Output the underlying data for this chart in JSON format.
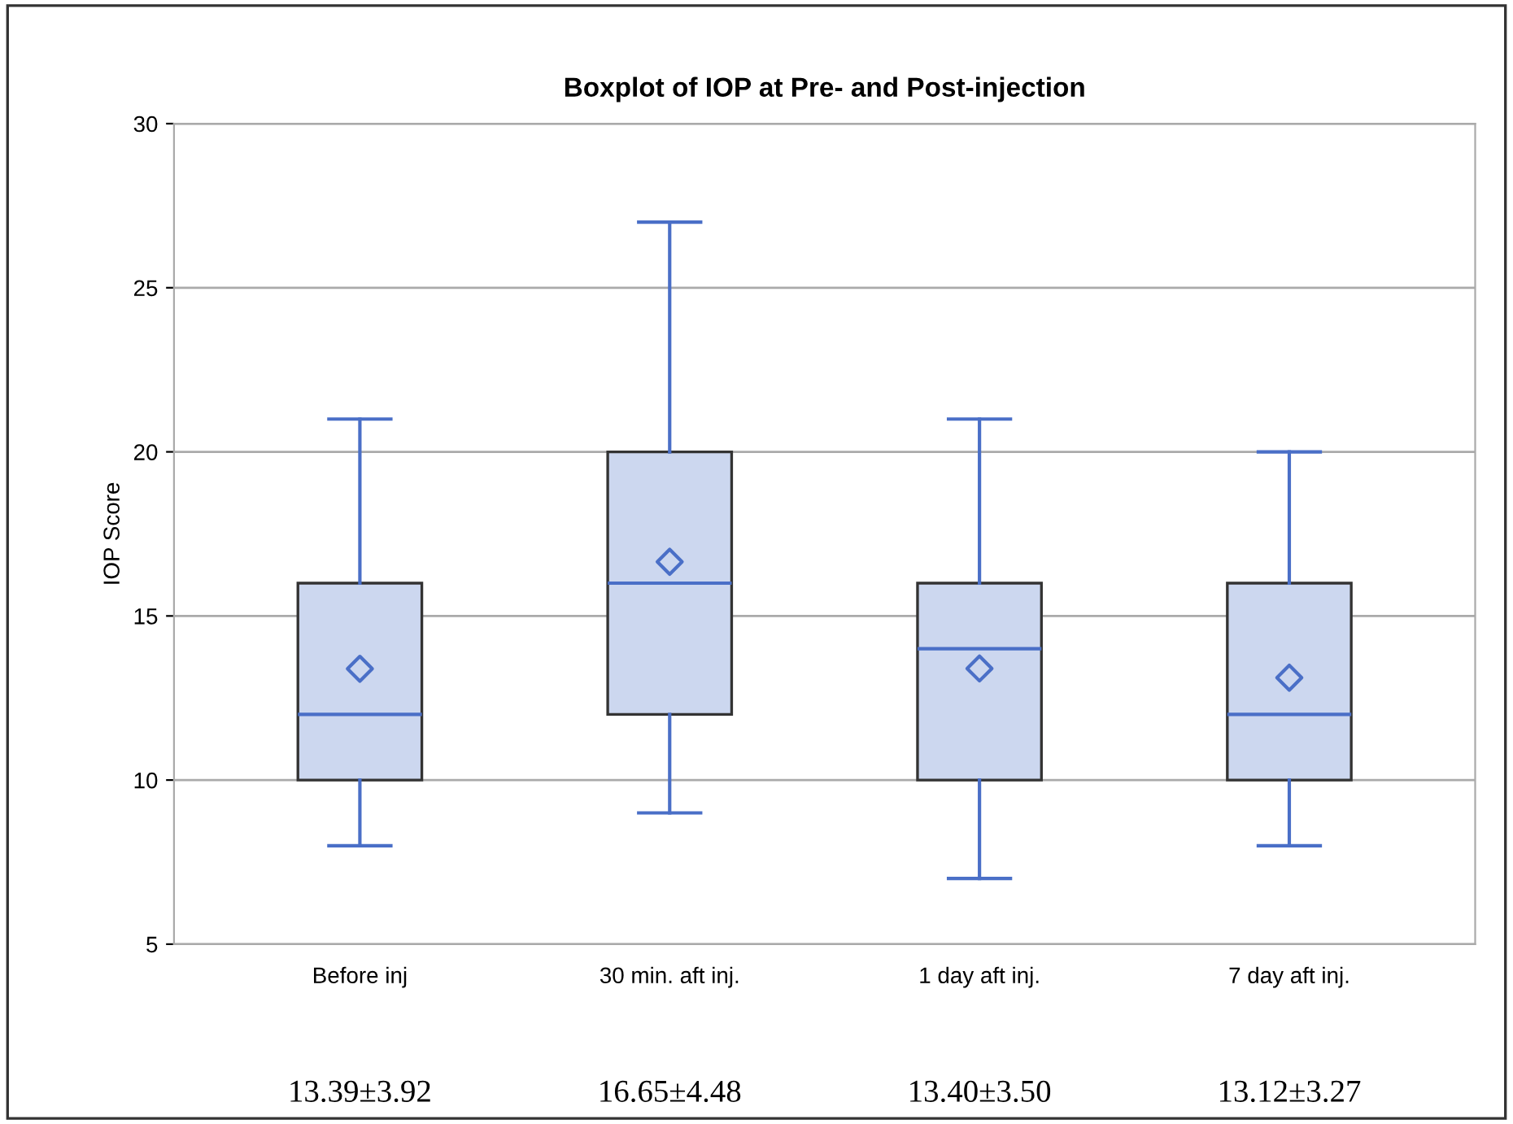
{
  "chart_data": {
    "type": "box",
    "title": "Boxplot of IOP at Pre- and Post-injection",
    "ylabel": "IOP Score",
    "categories": [
      "Before inj",
      "30 min. aft inj.",
      "1 day aft inj.",
      "7 day aft inj."
    ],
    "series": [
      {
        "color": "#ccd7ef",
        "boxes": [
          {
            "low": 8,
            "q1": 10,
            "median": 12,
            "q3": 16,
            "high": 21,
            "mean": 13.39
          },
          {
            "low": 9,
            "q1": 12,
            "median": 16,
            "q3": 20,
            "high": 27,
            "mean": 16.65
          },
          {
            "low": 7,
            "q1": 10,
            "median": 14,
            "q3": 16,
            "high": 21,
            "mean": 13.4
          },
          {
            "low": 8,
            "q1": 10,
            "median": 12,
            "q3": 16,
            "high": 20,
            "mean": 13.12
          }
        ]
      }
    ],
    "ylim": [
      5,
      30
    ],
    "yticks": [
      5,
      10,
      15,
      20,
      25,
      30
    ],
    "grid": "y",
    "marker": "diamond",
    "legend": false,
    "annotations": [
      "13.39±3.92",
      "16.65±4.48",
      "13.40±3.50",
      "13.12±3.27"
    ]
  }
}
